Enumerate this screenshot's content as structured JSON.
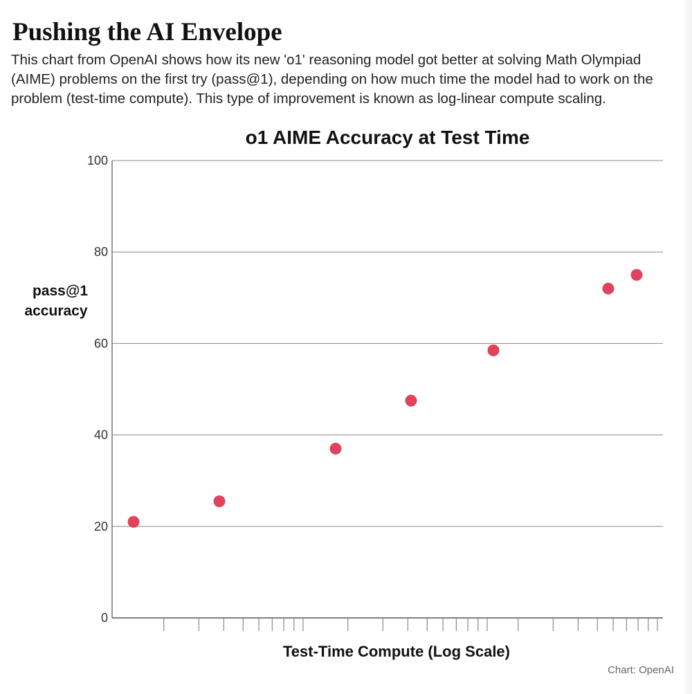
{
  "header": {
    "title": "Pushing the AI Envelope",
    "description": "This chart from OpenAI shows how its new 'o1' reasoning model got better at solving Math Olympiad (AIME) problems on the first try (pass@1), depending on how much time the model had to work on the problem (test-time compute). This type of improvement is known as log-linear compute scaling."
  },
  "chart_data": {
    "type": "scatter",
    "title": "o1 AIME Accuracy at Test Time",
    "xlabel": "Test-Time Compute (Log Scale)",
    "ylabel_lines": [
      "pass@1",
      "accuracy"
    ],
    "xscale": "log",
    "x_tick_labels_shown": false,
    "ylim": [
      0,
      100
    ],
    "yticks": [
      0,
      20,
      40,
      60,
      80,
      100
    ],
    "grid": "horizontal",
    "point_color": "#e0435b",
    "series": [
      {
        "values": [
          21,
          25.5,
          37,
          47.5,
          58.5,
          72,
          75
        ]
      }
    ]
  },
  "source": {
    "label": "Chart:",
    "name": "OpenAI"
  }
}
